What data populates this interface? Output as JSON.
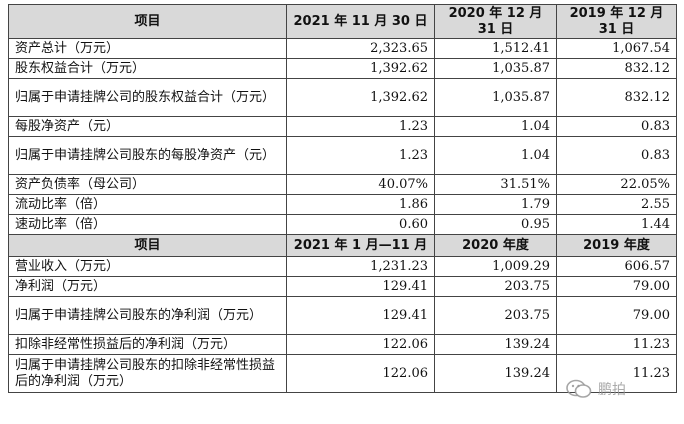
{
  "table1": {
    "headers": [
      "项目",
      "2021 年 11 月 30 日",
      "2020 年 12 月 31 日",
      "2019 年 12 月 31 日"
    ],
    "rows": [
      {
        "label": "资产总计（万元）",
        "v1": "2,323.65",
        "v2": "1,512.41",
        "v3": "1,067.54"
      },
      {
        "label": "股东权益合计（万元）",
        "v1": "1,392.62",
        "v2": "1,035.87",
        "v3": "832.12"
      },
      {
        "label": "归属于申请挂牌公司的股东权益合计（万元）",
        "v1": "1,392.62",
        "v2": "1,035.87",
        "v3": "832.12"
      },
      {
        "label": "每股净资产（元）",
        "v1": "1.23",
        "v2": "1.04",
        "v3": "0.83"
      },
      {
        "label": "归属于申请挂牌公司股东的每股净资产（元）",
        "v1": "1.23",
        "v2": "1.04",
        "v3": "0.83"
      },
      {
        "label": "资产负债率（母公司）",
        "v1": "40.07%",
        "v2": "31.51%",
        "v3": "22.05%"
      },
      {
        "label": "流动比率（倍）",
        "v1": "1.86",
        "v2": "1.79",
        "v3": "2.55"
      },
      {
        "label": "速动比率（倍）",
        "v1": "0.60",
        "v2": "0.95",
        "v3": "1.44"
      }
    ]
  },
  "table2": {
    "headers": [
      "项目",
      "2021 年 1 月—11 月",
      "2020 年度",
      "2019 年度"
    ],
    "rows": [
      {
        "label": "营业收入（万元）",
        "v1": "1,231.23",
        "v2": "1,009.29",
        "v3": "606.57"
      },
      {
        "label": "净利润（万元）",
        "v1": "129.41",
        "v2": "203.75",
        "v3": "79.00"
      },
      {
        "label": "归属于申请挂牌公司股东的净利润（万元）",
        "v1": "129.41",
        "v2": "203.75",
        "v3": "79.00"
      },
      {
        "label": "扣除非经常性损益后的净利润（万元）",
        "v1": "122.06",
        "v2": "139.24",
        "v3": "11.23"
      },
      {
        "label": "归属于申请挂牌公司股东的扣除非经常性损益后的净利润（万元）",
        "v1": "122.06",
        "v2": "139.24",
        "v3": "11.23"
      }
    ]
  },
  "watermark": {
    "text": "鹏拍",
    "icon": "wechat-icon"
  }
}
